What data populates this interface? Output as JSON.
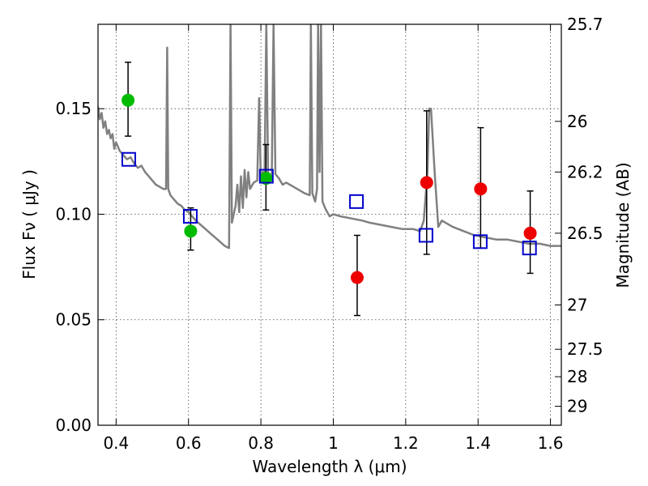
{
  "chart_data": {
    "type": "scatter",
    "xlabel": "Wavelength  λ (μm)",
    "ylabel": "Flux  Fν  ( μJy )",
    "y2label": "Magnitude (AB)",
    "xlim": [
      0.35,
      1.63
    ],
    "ylim": [
      0.0,
      0.19
    ],
    "x_ticks": [
      0.4,
      0.6,
      0.8,
      1.0,
      1.2,
      1.4,
      1.6
    ],
    "x_tick_labels": [
      "0.4",
      "0.6",
      "0.8",
      "1",
      "1.2",
      "1.4",
      "1.6"
    ],
    "y_ticks": [
      0.0,
      0.05,
      0.1,
      0.15
    ],
    "y_tick_labels": [
      "0.00",
      "0.05",
      "0.10",
      "0.15"
    ],
    "y2_ticks": [
      {
        "label": "25.7",
        "flux": 0.19
      },
      {
        "label": "26",
        "flux": 0.144
      },
      {
        "label": "26.2",
        "flux": 0.12
      },
      {
        "label": "26.5",
        "flux": 0.091
      },
      {
        "label": "27",
        "flux": 0.057
      },
      {
        "label": "27.5",
        "flux": 0.036
      },
      {
        "label": "28",
        "flux": 0.023
      },
      {
        "label": "29",
        "flux": 0.009
      }
    ],
    "grid": true,
    "series": [
      {
        "kind": "template-spectrum",
        "color": "#808080",
        "points": [
          [
            0.35,
            0.151
          ],
          [
            0.355,
            0.145
          ],
          [
            0.36,
            0.148
          ],
          [
            0.365,
            0.141
          ],
          [
            0.37,
            0.144
          ],
          [
            0.375,
            0.138
          ],
          [
            0.38,
            0.14
          ],
          [
            0.385,
            0.136
          ],
          [
            0.39,
            0.138
          ],
          [
            0.395,
            0.131
          ],
          [
            0.4,
            0.134
          ],
          [
            0.41,
            0.13
          ],
          [
            0.42,
            0.128
          ],
          [
            0.43,
            0.126
          ],
          [
            0.44,
            0.127
          ],
          [
            0.45,
            0.124
          ],
          [
            0.46,
            0.122
          ],
          [
            0.47,
            0.123
          ],
          [
            0.48,
            0.12
          ],
          [
            0.49,
            0.118
          ],
          [
            0.5,
            0.116
          ],
          [
            0.51,
            0.114
          ],
          [
            0.52,
            0.113
          ],
          [
            0.53,
            0.112
          ],
          [
            0.538,
            0.112
          ],
          [
            0.541,
            0.179
          ],
          [
            0.544,
            0.112
          ],
          [
            0.55,
            0.109
          ],
          [
            0.56,
            0.107
          ],
          [
            0.57,
            0.105
          ],
          [
            0.58,
            0.104
          ],
          [
            0.59,
            0.102
          ],
          [
            0.6,
            0.101
          ],
          [
            0.62,
            0.097
          ],
          [
            0.64,
            0.094
          ],
          [
            0.66,
            0.091
          ],
          [
            0.68,
            0.088
          ],
          [
            0.7,
            0.085
          ],
          [
            0.712,
            0.084
          ],
          [
            0.716,
            0.19
          ],
          [
            0.72,
            0.096
          ],
          [
            0.73,
            0.104
          ],
          [
            0.735,
            0.114
          ],
          [
            0.74,
            0.101
          ],
          [
            0.745,
            0.118
          ],
          [
            0.75,
            0.103
          ],
          [
            0.755,
            0.121
          ],
          [
            0.76,
            0.108
          ],
          [
            0.765,
            0.12
          ],
          [
            0.77,
            0.112
          ],
          [
            0.78,
            0.115
          ],
          [
            0.79,
            0.116
          ],
          [
            0.795,
            0.155
          ],
          [
            0.8,
            0.115
          ],
          [
            0.805,
            0.12
          ],
          [
            0.81,
            0.118
          ],
          [
            0.815,
            0.19
          ],
          [
            0.82,
            0.118
          ],
          [
            0.83,
            0.117
          ],
          [
            0.835,
            0.19
          ],
          [
            0.84,
            0.119
          ],
          [
            0.85,
            0.117
          ],
          [
            0.86,
            0.114
          ],
          [
            0.87,
            0.115
          ],
          [
            0.88,
            0.114
          ],
          [
            0.89,
            0.113
          ],
          [
            0.9,
            0.112
          ],
          [
            0.91,
            0.111
          ],
          [
            0.92,
            0.11
          ],
          [
            0.935,
            0.109
          ],
          [
            0.938,
            0.19
          ],
          [
            0.942,
            0.11
          ],
          [
            0.95,
            0.106
          ],
          [
            0.955,
            0.112
          ],
          [
            0.958,
            0.19
          ],
          [
            0.962,
            0.12
          ],
          [
            0.966,
            0.19
          ],
          [
            0.97,
            0.106
          ],
          [
            0.975,
            0.104
          ],
          [
            0.98,
            0.102
          ],
          [
            0.99,
            0.099
          ],
          [
            1.0,
            0.1
          ],
          [
            1.02,
            0.099
          ],
          [
            1.05,
            0.098
          ],
          [
            1.08,
            0.097
          ],
          [
            1.1,
            0.096
          ],
          [
            1.13,
            0.095
          ],
          [
            1.16,
            0.094
          ],
          [
            1.19,
            0.093
          ],
          [
            1.22,
            0.093
          ],
          [
            1.24,
            0.092
          ],
          [
            1.25,
            0.097
          ],
          [
            1.26,
            0.12
          ],
          [
            1.265,
            0.15
          ],
          [
            1.27,
            0.15
          ],
          [
            1.28,
            0.12
          ],
          [
            1.29,
            0.094
          ],
          [
            1.3,
            0.097
          ],
          [
            1.33,
            0.094
          ],
          [
            1.36,
            0.092
          ],
          [
            1.39,
            0.09
          ],
          [
            1.42,
            0.089
          ],
          [
            1.45,
            0.088
          ],
          [
            1.48,
            0.088
          ],
          [
            1.51,
            0.087
          ],
          [
            1.54,
            0.086
          ],
          [
            1.57,
            0.086
          ],
          [
            1.6,
            0.085
          ],
          [
            1.63,
            0.085
          ]
        ]
      },
      {
        "kind": "observed",
        "color": "#00bb00",
        "points": [
          {
            "x": 0.433,
            "y": 0.154,
            "err": [
              0.137,
              0.172
            ]
          },
          {
            "x": 0.606,
            "y": 0.092,
            "err": [
              0.083,
              0.103
            ]
          },
          {
            "x": 0.814,
            "y": 0.117,
            "err": [
              0.102,
              0.133
            ]
          }
        ]
      },
      {
        "kind": "observed",
        "color": "#ee0000",
        "points": [
          {
            "x": 1.066,
            "y": 0.07,
            "err": [
              0.052,
              0.09
            ]
          },
          {
            "x": 1.258,
            "y": 0.115,
            "err": [
              0.081,
              0.149
            ]
          },
          {
            "x": 1.407,
            "y": 0.112,
            "err": [
              0.084,
              0.141
            ]
          },
          {
            "x": 1.544,
            "y": 0.091,
            "err": [
              0.072,
              0.111
            ]
          }
        ]
      },
      {
        "kind": "model-photometry",
        "color": "#0000cc",
        "points": [
          [
            0.435,
            0.126
          ],
          [
            0.605,
            0.099
          ],
          [
            0.815,
            0.118
          ],
          [
            1.064,
            0.106
          ],
          [
            1.256,
            0.09
          ],
          [
            1.406,
            0.087
          ],
          [
            1.542,
            0.084
          ]
        ]
      }
    ]
  }
}
